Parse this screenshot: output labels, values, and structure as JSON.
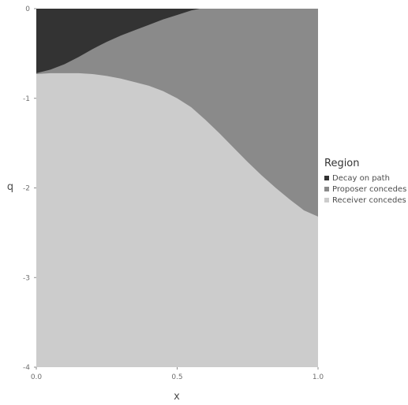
{
  "chart_data": {
    "type": "heatmap",
    "xlabel": "x",
    "ylabel": "q",
    "xlim": [
      0,
      1
    ],
    "ylim": [
      -4,
      0
    ],
    "x_ticks": [
      "0.0",
      "0.5",
      "1.0"
    ],
    "y_ticks": [
      "0",
      "-1",
      "-2",
      "-3",
      "-4"
    ],
    "legend": {
      "title": "Region",
      "placement": "right",
      "entries": [
        {
          "label": "Decay on path",
          "color": "#333333"
        },
        {
          "label": "Proposer concedes",
          "color": "#8a8a8a"
        },
        {
          "label": "Receiver concedes",
          "color": "#cccccc"
        }
      ]
    },
    "boundaries": [
      {
        "name": "decay_proposer",
        "x": [
          0.0,
          0.05,
          0.1,
          0.15,
          0.2,
          0.25,
          0.3,
          0.35,
          0.4,
          0.45,
          0.5,
          0.55,
          0.58
        ],
        "q": [
          -0.72,
          -0.68,
          -0.62,
          -0.54,
          -0.45,
          -0.37,
          -0.3,
          -0.24,
          -0.18,
          -0.12,
          -0.07,
          -0.02,
          0.0
        ]
      },
      {
        "name": "proposer_receiver",
        "x": [
          0.0,
          0.05,
          0.1,
          0.15,
          0.2,
          0.25,
          0.3,
          0.35,
          0.4,
          0.45,
          0.5,
          0.55,
          0.6,
          0.65,
          0.7,
          0.75,
          0.8,
          0.85,
          0.9,
          0.95,
          1.0
        ],
        "q": [
          -0.73,
          -0.72,
          -0.72,
          -0.72,
          -0.73,
          -0.75,
          -0.78,
          -0.82,
          -0.86,
          -0.92,
          -1.0,
          -1.1,
          -1.24,
          -1.39,
          -1.55,
          -1.71,
          -1.86,
          -2.0,
          -2.13,
          -2.25,
          -2.32
        ]
      }
    ]
  }
}
